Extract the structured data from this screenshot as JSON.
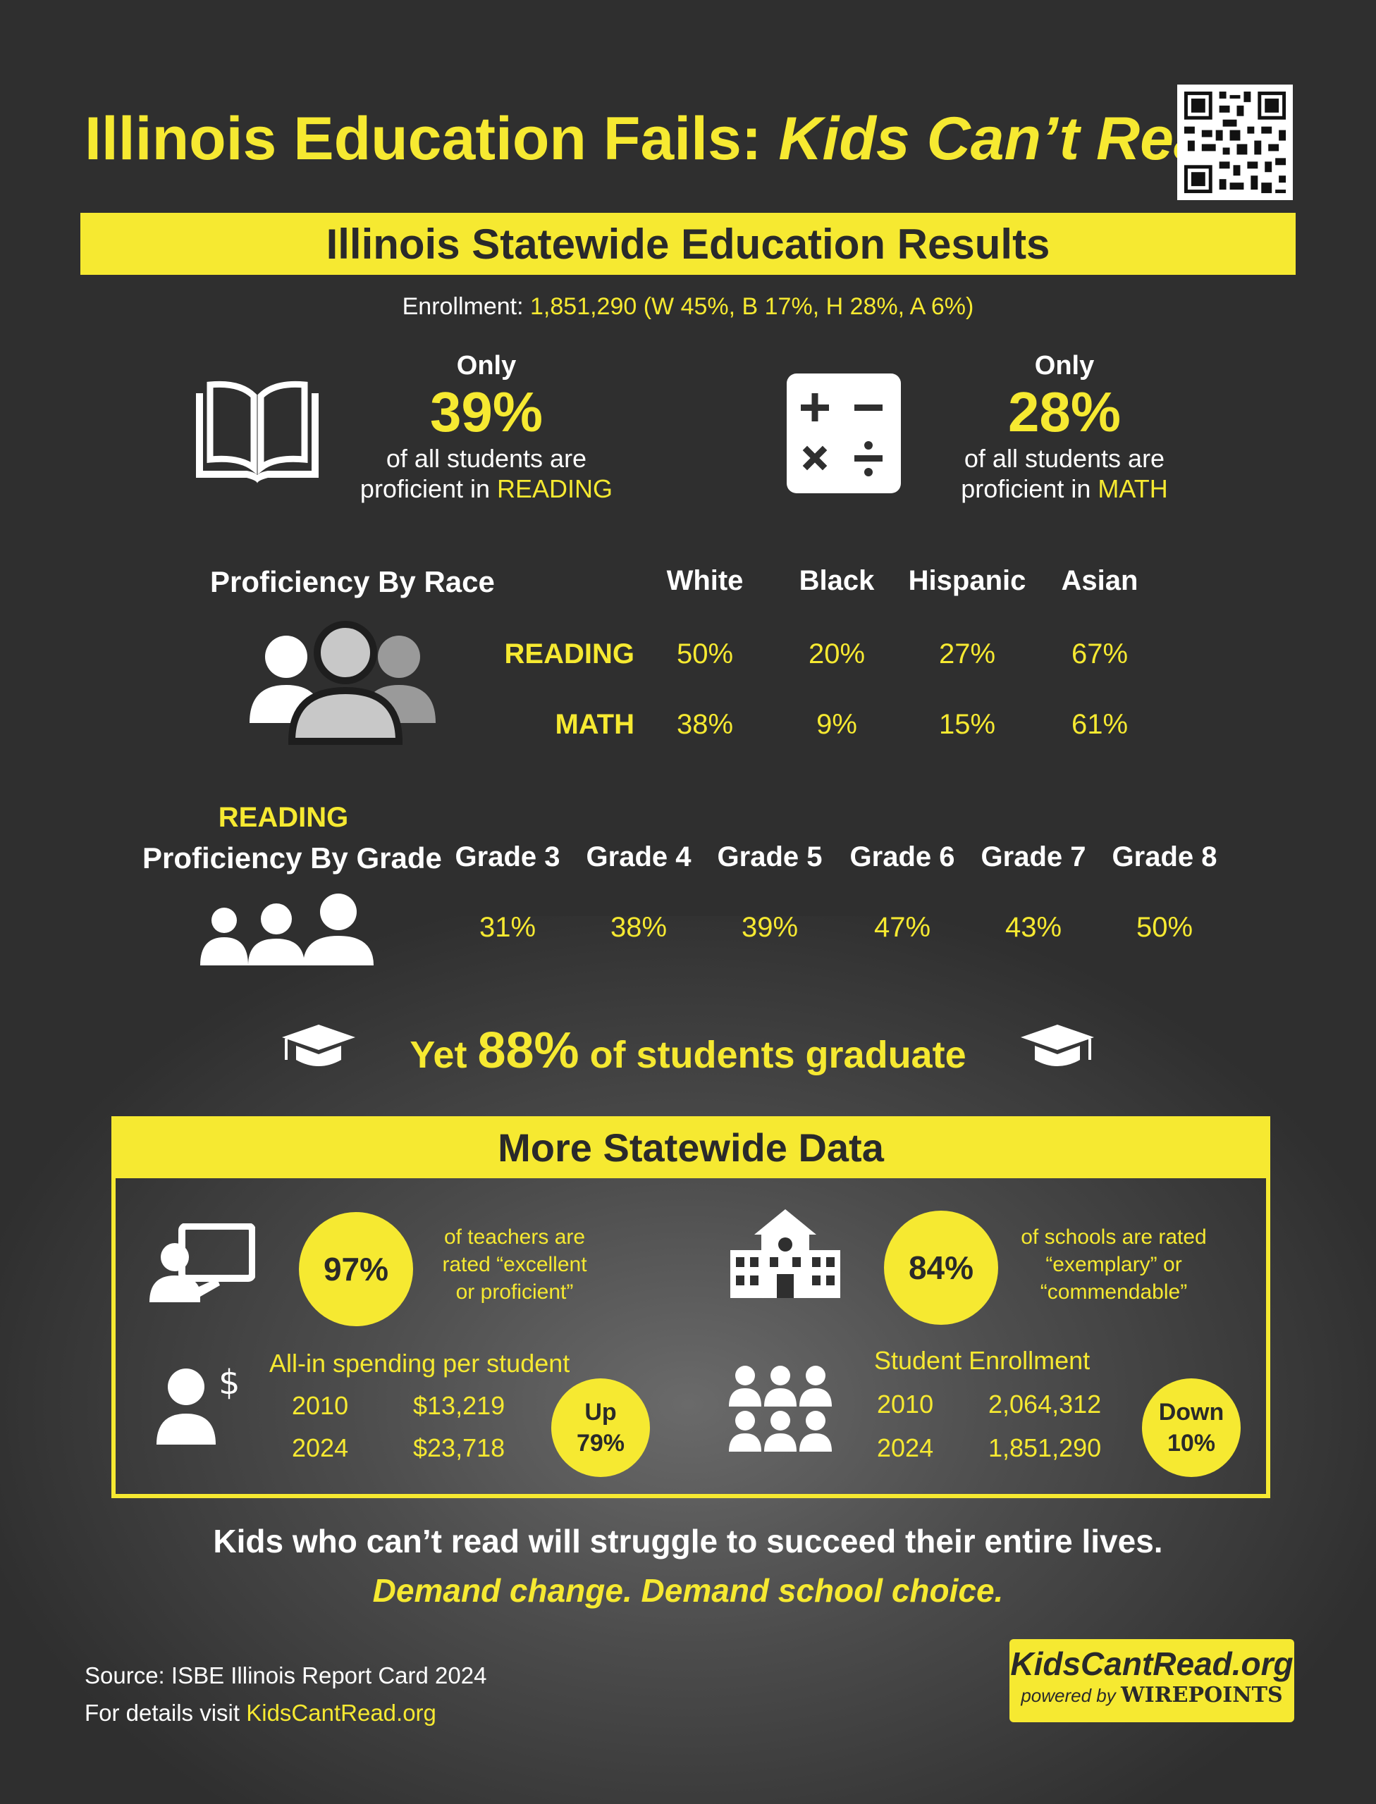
{
  "title": {
    "main": "Illinois Education Fails: ",
    "italic": "Kids Can’t Read"
  },
  "banner": "Illinois Statewide Education Results",
  "enrollment": {
    "label": "Enrollment: ",
    "value": "1,851,290  (W 45%, B 17%, H 28%, A 6%)"
  },
  "reading_stat": {
    "only": "Only",
    "percent": "39%",
    "line1": "of all students are",
    "line2_prefix": "proficient in ",
    "subject": "READING"
  },
  "math_stat": {
    "only": "Only",
    "percent": "28%",
    "line1": "of all students are",
    "line2_prefix": "proficient in ",
    "subject": "MATH"
  },
  "race": {
    "heading": "Proficiency By Race",
    "columns": [
      "White",
      "Black",
      "Hispanic",
      "Asian"
    ],
    "rows": [
      {
        "label": "READING",
        "values": [
          "50%",
          "20%",
          "27%",
          "67%"
        ]
      },
      {
        "label": "MATH",
        "values": [
          "38%",
          "9%",
          "15%",
          "61%"
        ]
      }
    ]
  },
  "grade": {
    "label_top": "READING",
    "heading": "Proficiency By Grade",
    "columns": [
      "Grade 3",
      "Grade 4",
      "Grade 5",
      "Grade 6",
      "Grade 7",
      "Grade 8"
    ],
    "values": [
      "31%",
      "38%",
      "39%",
      "47%",
      "43%",
      "50%"
    ]
  },
  "graduate": {
    "pre": "Yet ",
    "percent": "88%",
    "post": " of students graduate"
  },
  "more": {
    "header": "More Statewide Data",
    "teachers": {
      "percent": "97%",
      "desc": [
        "of teachers are",
        "rated “excellent",
        "or proficient”"
      ]
    },
    "schools": {
      "percent": "84%",
      "desc": [
        "of schools are rated",
        "“exemplary” or",
        "“commendable”"
      ]
    },
    "spending": {
      "title": "All-in spending per student",
      "rows": [
        {
          "year": "2010",
          "value": "$13,219"
        },
        {
          "year": "2024",
          "value": "$23,718"
        }
      ],
      "change_word": "Up",
      "change_pct": "79%"
    },
    "enrollment": {
      "title": "Student Enrollment",
      "rows": [
        {
          "year": "2010",
          "value": "2,064,312"
        },
        {
          "year": "2024",
          "value": "1,851,290"
        }
      ],
      "change_word": "Down",
      "change_pct": "10%"
    }
  },
  "footer": {
    "line1": "Kids who can’t read will struggle to succeed their entire lives.",
    "line2": "Demand change.  Demand school choice.",
    "source": "Source: ISBE Illinois Report Card 2024",
    "details_prefix": "For details visit ",
    "details_link": "KidsCantRead.org",
    "badge_site": "KidsCantRead.org",
    "badge_powered": "powered by ",
    "badge_brand": "WIREPOINTS"
  }
}
